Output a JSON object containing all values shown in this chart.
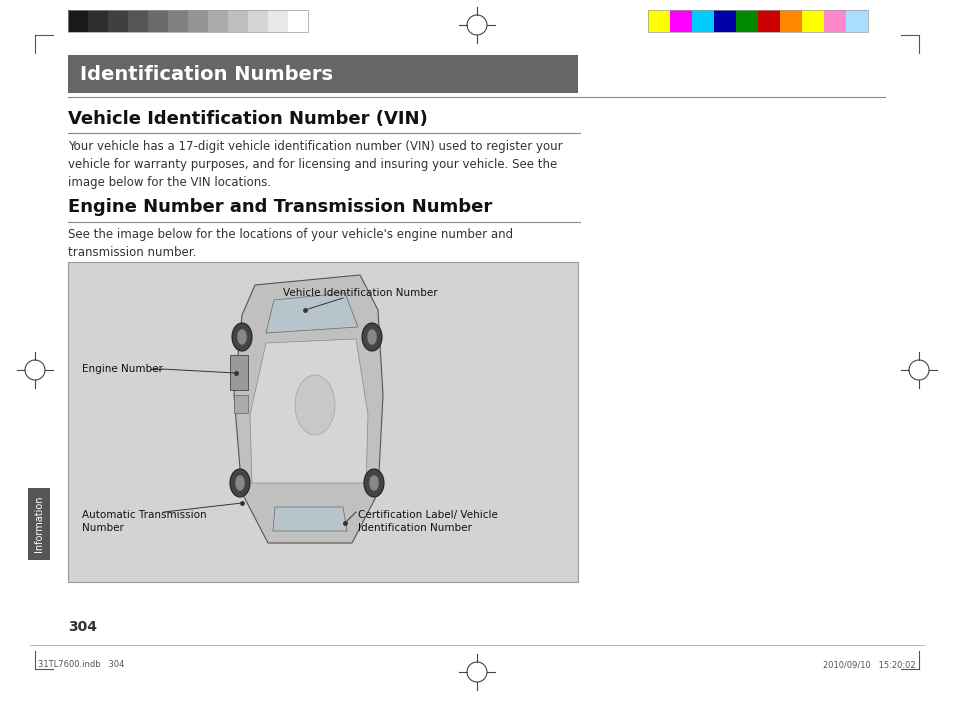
{
  "background_color": "#ffffff",
  "header_bar_color": "#666666",
  "header_text": "Identification Numbers",
  "header_text_color": "#ffffff",
  "header_font_size": 14,
  "title1": "Vehicle Identification Number (VIN)",
  "title1_font_size": 13,
  "body1": "Your vehicle has a 17-digit vehicle identification number (VIN) used to register your\nvehicle for warranty purposes, and for licensing and insuring your vehicle. See the\nimage below for the VIN locations.",
  "body1_font_size": 8.5,
  "title2": "Engine Number and Transmission Number",
  "title2_font_size": 13,
  "body2": "See the image below for the locations of your vehicle's engine number and\ntransmission number.",
  "body2_font_size": 8.5,
  "diagram_bg": "#d3d3d3",
  "diagram_border": "#999999",
  "page_number": "304",
  "footer_left": "31TL7600.indb   304",
  "footer_right": "2010/09/10   15:20:02",
  "label_vin": "Vehicle Identification Number",
  "label_engine": "Engine Number",
  "label_transmission": "Automatic Transmission\nNumber",
  "label_cert": "Certification Label/ Vehicle\nIdentification Number",
  "sidebar_text": "Information",
  "sidebar_color": "#555555",
  "grayscale_swatches": [
    "#1a1a1a",
    "#2d2d2d",
    "#404040",
    "#555555",
    "#6a6a6a",
    "#808080",
    "#959595",
    "#aaaaaa",
    "#bfbfbf",
    "#d4d4d4",
    "#e9e9e9",
    "#ffffff"
  ],
  "color_swatches": [
    "#ffff00",
    "#ff00ff",
    "#00ccff",
    "#0000aa",
    "#008800",
    "#cc0000",
    "#ff8800",
    "#ffff00",
    "#ff88cc",
    "#aaddff"
  ],
  "divider_color": "#888888",
  "label_font_size": 7.5,
  "small_font_size": 6.0
}
